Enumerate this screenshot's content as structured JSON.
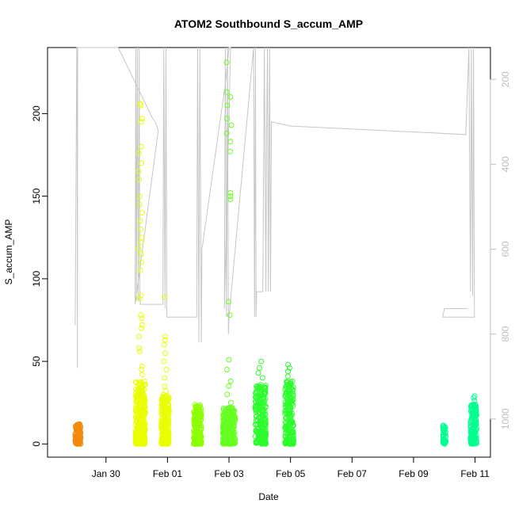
{
  "chart_data": {
    "type": "scatter",
    "title": "ATOM2 Southbound S_accum_AMP",
    "xlabel": "Date",
    "ylabel": "S_accum_AMP",
    "x_unit": "days",
    "x_tick_labels": [
      "Jan 30",
      "Feb 01",
      "Feb 03",
      "Feb 05",
      "Feb 07",
      "Feb 09",
      "Feb 11"
    ],
    "x_tick_values": [
      1,
      3,
      5,
      7,
      9,
      11,
      13
    ],
    "xlim": [
      -0.9,
      13.5
    ],
    "ylim": [
      -8,
      240
    ],
    "y_ticks": [
      0,
      50,
      100,
      150,
      200
    ],
    "y2_ticks": [
      200,
      400,
      600,
      800,
      1000
    ],
    "y2lim": [
      1090,
      125
    ],
    "grid": false,
    "legend": "none",
    "colors": {
      "c1": "#f28a0e",
      "c2": "#e8ff00",
      "c3": "#8cff00",
      "c4": "#66ff20",
      "c5": "#2cfc2c",
      "c6": "#00ff90",
      "right_axis_line": "#c6c6c6",
      "right_axis_text": "#bdbdbd"
    },
    "clusters": [
      {
        "x0": 0.0,
        "x1": 0.18,
        "bulk_max": 12,
        "n": 120,
        "outliers": [],
        "color": "c1"
      },
      {
        "x0": 1.96,
        "x1": 2.28,
        "bulk_max": 38,
        "n": 300,
        "outliers": [
          42,
          45,
          47,
          56,
          58,
          65,
          70,
          72,
          76,
          78,
          88,
          90,
          105,
          110,
          115,
          118,
          122,
          125,
          130,
          135,
          140,
          145,
          150,
          160,
          165,
          170,
          176,
          180,
          195,
          197,
          205,
          206
        ],
        "color": "c2"
      },
      {
        "x0": 2.8,
        "x1": 3.05,
        "bulk_max": 30,
        "n": 220,
        "outliers": [
          32,
          35,
          40,
          45,
          50,
          55,
          60,
          63,
          65,
          89
        ],
        "color": "c2"
      },
      {
        "x0": 3.85,
        "x1": 4.1,
        "bulk_max": 24,
        "n": 200,
        "outliers": [],
        "color": "c3"
      },
      {
        "x0": 4.8,
        "x1": 5.2,
        "bulk_max": 22,
        "n": 260,
        "outliers": [
          25,
          30,
          35,
          38,
          45,
          51,
          78,
          86,
          148,
          150,
          152,
          177,
          183,
          188,
          193,
          197,
          205,
          210,
          213,
          231
        ],
        "color": "c4"
      },
      {
        "x0": 5.85,
        "x1": 6.2,
        "bulk_max": 36,
        "n": 220,
        "outliers": [
          40,
          43,
          46,
          50
        ],
        "color": "c5"
      },
      {
        "x0": 6.82,
        "x1": 7.1,
        "bulk_max": 38,
        "n": 200,
        "outliers": [
          41,
          44,
          46,
          48
        ],
        "color": "c5"
      },
      {
        "x0": 11.95,
        "x1": 12.05,
        "bulk_max": 12,
        "n": 40,
        "outliers": [],
        "color": "c6"
      },
      {
        "x0": 12.85,
        "x1": 13.05,
        "bulk_max": 24,
        "n": 160,
        "outliers": [
          26,
          28,
          29
        ],
        "color": "c6"
      }
    ],
    "right_axis_series": {
      "name": "",
      "points": [
        [
          0.0,
          780
        ],
        [
          0.05,
          125
        ],
        [
          0.06,
          125
        ],
        [
          0.07,
          880
        ],
        [
          0.08,
          125
        ],
        [
          1.4,
          125
        ],
        [
          2.5,
          290
        ],
        [
          2.6,
          300
        ],
        [
          2.7,
          320
        ],
        [
          1.95,
          730
        ],
        [
          1.97,
          125
        ],
        [
          1.99,
          720
        ],
        [
          2.02,
          125
        ],
        [
          2.05,
          720
        ],
        [
          2.08,
          125
        ],
        [
          2.1,
          720
        ],
        [
          2.12,
          730
        ],
        [
          2.85,
          730
        ],
        [
          2.88,
          125
        ],
        [
          2.92,
          740
        ],
        [
          2.95,
          125
        ],
        [
          2.98,
          760
        ],
        [
          3.95,
          760
        ],
        [
          3.98,
          125
        ],
        [
          4.02,
          820
        ],
        [
          4.05,
          125
        ],
        [
          4.1,
          820
        ],
        [
          4.12,
          600
        ],
        [
          4.9,
          200
        ],
        [
          5.0,
          125
        ],
        [
          5.05,
          125
        ],
        [
          4.85,
          740
        ],
        [
          4.88,
          125
        ],
        [
          4.92,
          760
        ],
        [
          4.95,
          125
        ],
        [
          4.98,
          800
        ],
        [
          5.0,
          760
        ],
        [
          5.8,
          125
        ],
        [
          5.83,
          760
        ],
        [
          5.86,
          125
        ],
        [
          5.88,
          760
        ],
        [
          5.9,
          700
        ],
        [
          6.1,
          700
        ],
        [
          6.15,
          125
        ],
        [
          6.2,
          700
        ],
        [
          6.22,
          350
        ],
        [
          6.25,
          125
        ],
        [
          6.28,
          700
        ],
        [
          6.32,
          125
        ],
        [
          6.35,
          700
        ],
        [
          6.38,
          300
        ],
        [
          7.0,
          310
        ],
        [
          12.7,
          330
        ],
        [
          12.8,
          125
        ],
        [
          12.85,
          700
        ],
        [
          12.88,
          125
        ],
        [
          12.92,
          710
        ],
        [
          12.95,
          125
        ],
        [
          12.98,
          760
        ],
        [
          11.95,
          760
        ],
        [
          12.0,
          740
        ],
        [
          12.75,
          740
        ]
      ]
    }
  }
}
